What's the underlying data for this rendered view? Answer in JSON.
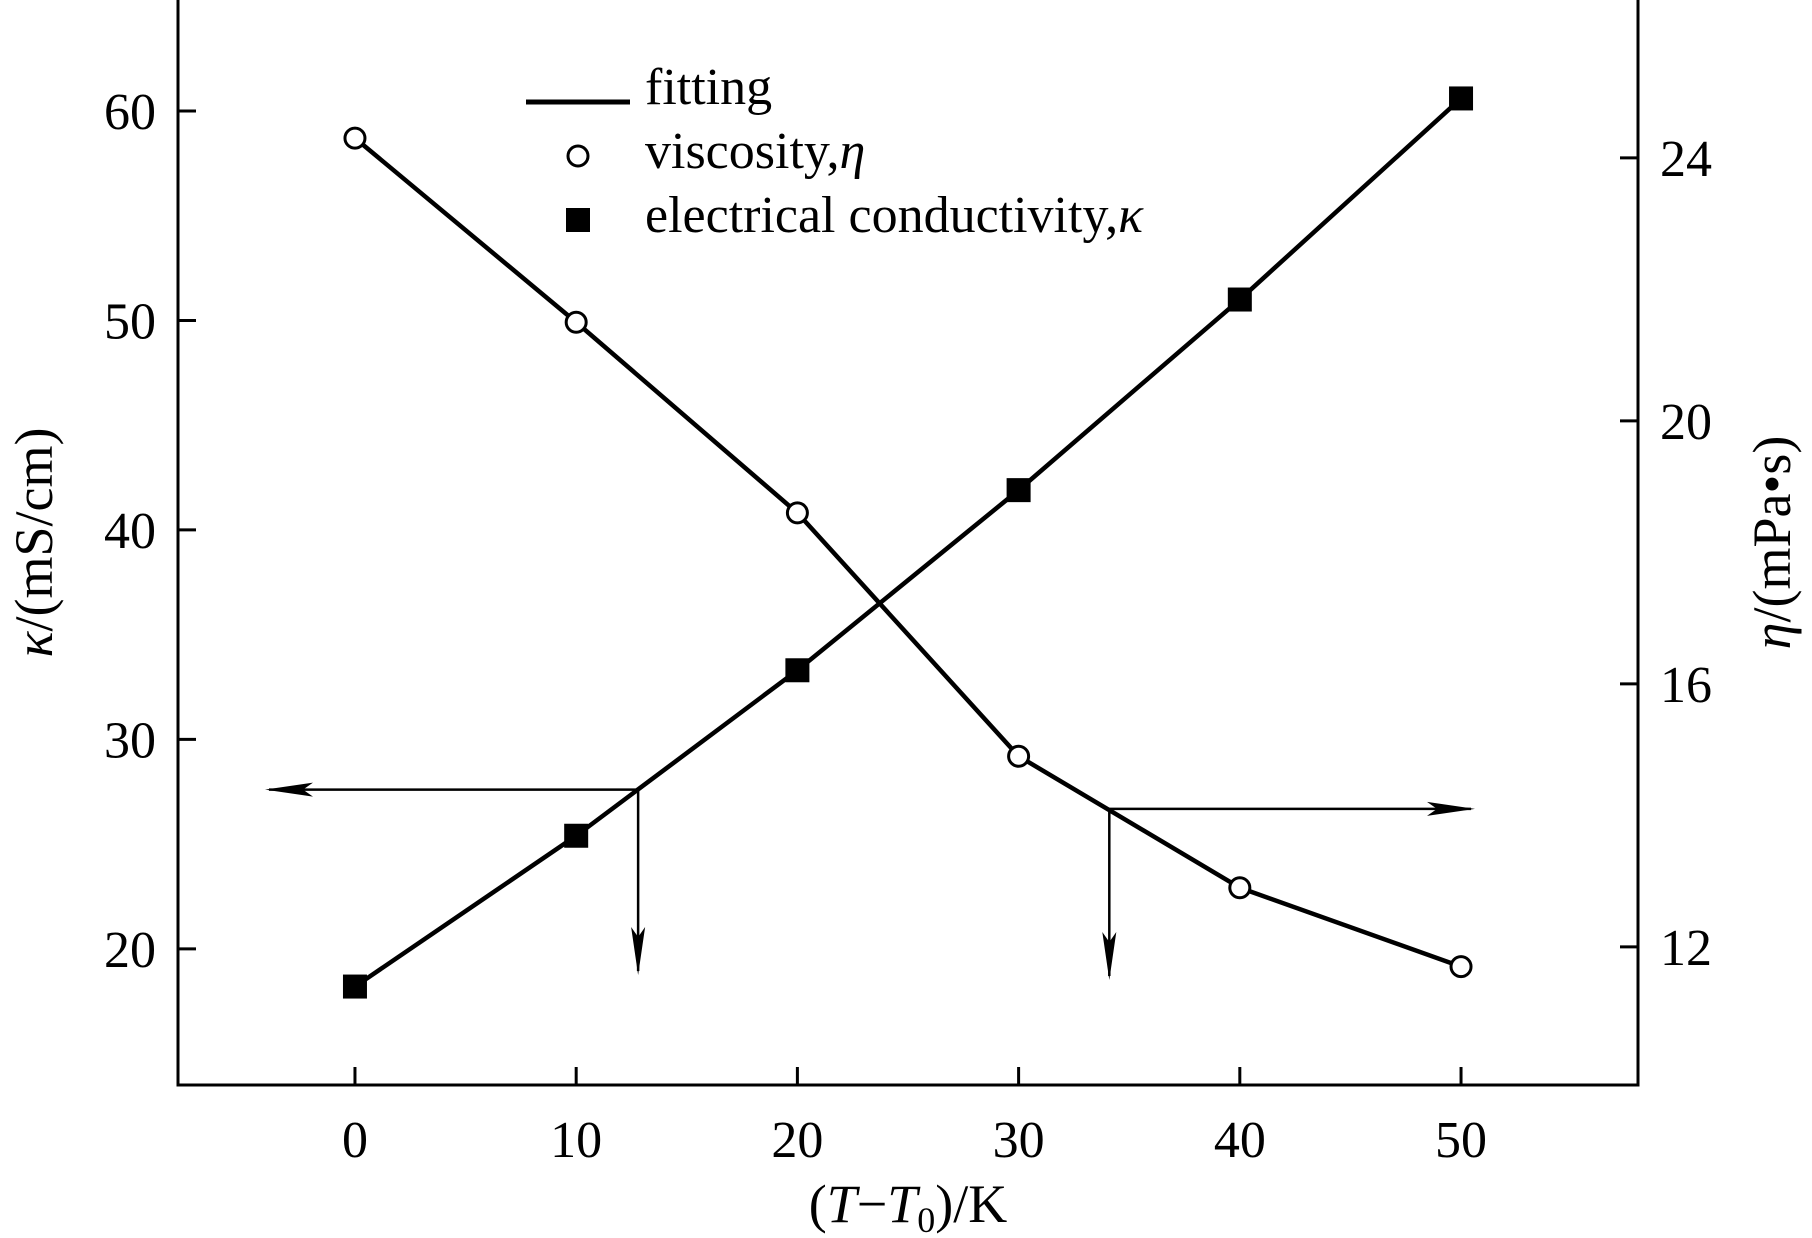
{
  "chart_data": {
    "type": "line",
    "x": [
      0,
      10,
      20,
      30,
      40,
      50
    ],
    "xlabel": "(T−T0)/K",
    "xlim": [
      -8,
      58
    ],
    "xticks": [
      0,
      10,
      20,
      30,
      40,
      50
    ],
    "y_left": {
      "label": "κ/(mS/cm)",
      "lim": [
        13.5,
        65.3
      ],
      "ticks": [
        20,
        30,
        40,
        50,
        60
      ]
    },
    "y_right": {
      "label": "η/(mPa•s)",
      "lim": [
        9.9,
        26.4
      ],
      "ticks": [
        12,
        16,
        20,
        24
      ]
    },
    "series": [
      {
        "name": "electrical conductivity,κ",
        "axis": "left",
        "marker": "filled-square",
        "values": [
          18.2,
          25.4,
          33.3,
          41.9,
          51.0,
          60.6
        ]
      },
      {
        "name": "viscosity,η",
        "axis": "right",
        "marker": "open-circle",
        "values": [
          24.3,
          21.5,
          18.6,
          14.9,
          12.9,
          11.7
        ]
      }
    ],
    "legend": {
      "position": "top-center",
      "entries": [
        {
          "marker": "line",
          "label": "fitting"
        },
        {
          "marker": "open-circle",
          "label": "viscosity,",
          "symbol": "η"
        },
        {
          "marker": "filled-square",
          "label": "electrical conductivity,",
          "symbol": "κ"
        }
      ]
    },
    "annotations": [
      {
        "type": "arrow",
        "meaning": "series κ uses left axis",
        "from_x": 12.8,
        "y_axis": "left",
        "y": 27.6
      },
      {
        "type": "arrow",
        "meaning": "series η uses right axis",
        "from_x": 34.1,
        "y_axis": "right",
        "y": 14.1
      }
    ],
    "grid": false,
    "colors": {
      "ink": "#000000",
      "background": "#ffffff"
    }
  }
}
